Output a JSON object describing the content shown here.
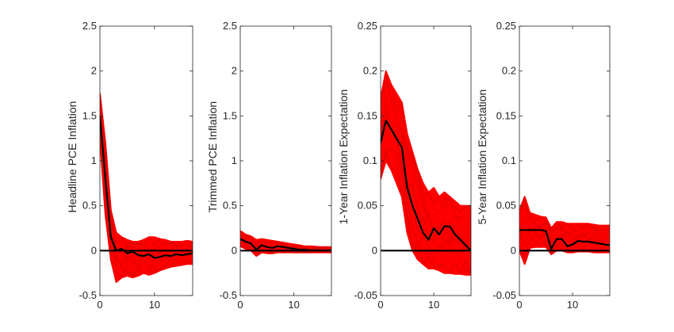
{
  "figure": {
    "colors": {
      "band": "#ff0000",
      "median": "#000000",
      "zero_line": "#000000",
      "axes": "#262626"
    }
  },
  "chart_data": [
    {
      "type": "line",
      "id": "headline",
      "ylabel": "Headline PCE Inflation",
      "xlim": [
        0,
        17
      ],
      "ylim": [
        -0.5,
        2.5
      ],
      "xticks": [
        0,
        10
      ],
      "xtick_labels": [
        "0",
        "10"
      ],
      "yticks": [
        -0.5,
        0,
        0.5,
        1,
        1.5,
        2,
        2.5
      ],
      "ytick_labels": [
        "-0.5",
        "0",
        "0.5",
        "1",
        "1.5",
        "2",
        "2.5"
      ],
      "zero_line": 0,
      "x": [
        0,
        1,
        2,
        3,
        4,
        5,
        6,
        7,
        8,
        9,
        10,
        11,
        12,
        13,
        14,
        15,
        16,
        17
      ],
      "median": [
        1.5,
        0.8,
        0.15,
        0.0,
        0.02,
        -0.03,
        -0.01,
        -0.05,
        -0.06,
        -0.04,
        -0.08,
        -0.07,
        -0.05,
        -0.06,
        -0.04,
        -0.05,
        -0.04,
        -0.03
      ],
      "band_upper": [
        1.75,
        1.2,
        0.45,
        0.2,
        0.15,
        0.12,
        0.1,
        0.1,
        0.12,
        0.15,
        0.15,
        0.13,
        0.12,
        0.1,
        0.1,
        0.1,
        0.11,
        0.1
      ],
      "band_lower": [
        1.25,
        0.4,
        -0.1,
        -0.35,
        -0.3,
        -0.28,
        -0.3,
        -0.28,
        -0.25,
        -0.27,
        -0.25,
        -0.22,
        -0.2,
        -0.18,
        -0.17,
        -0.16,
        -0.15,
        -0.15
      ]
    },
    {
      "type": "line",
      "id": "trimmed",
      "ylabel": "Trimmed PCE Inflation",
      "xlim": [
        0,
        17
      ],
      "ylim": [
        -0.5,
        2.5
      ],
      "xticks": [
        0,
        10
      ],
      "xtick_labels": [
        "0",
        "10"
      ],
      "yticks": [
        -0.5,
        0,
        0.5,
        1,
        1.5,
        2,
        2.5
      ],
      "ytick_labels": [
        "-0.5",
        "0",
        "0.5",
        "1",
        "1.5",
        "2",
        "2.5"
      ],
      "zero_line": 0,
      "x": [
        0,
        1,
        2,
        3,
        4,
        5,
        6,
        7,
        8,
        9,
        10,
        11,
        12,
        13,
        14,
        15,
        16,
        17
      ],
      "median": [
        0.13,
        0.1,
        0.08,
        0.01,
        0.06,
        0.04,
        0.03,
        0.05,
        0.04,
        0.03,
        0.02,
        0.01,
        0.01,
        0.005,
        0.005,
        0.003,
        0.002,
        0.0
      ],
      "band_upper": [
        0.22,
        0.18,
        0.16,
        0.12,
        0.13,
        0.12,
        0.11,
        0.1,
        0.09,
        0.08,
        0.07,
        0.06,
        0.05,
        0.05,
        0.045,
        0.04,
        0.04,
        0.04
      ],
      "band_lower": [
        0.05,
        0.02,
        0.0,
        -0.06,
        -0.02,
        -0.03,
        -0.03,
        -0.02,
        -0.02,
        -0.02,
        -0.02,
        -0.02,
        -0.02,
        -0.02,
        -0.02,
        -0.02,
        -0.02,
        -0.02
      ]
    },
    {
      "type": "line",
      "id": "expect1y",
      "ylabel": "1-Year Inflation Expectation",
      "xlim": [
        0,
        17
      ],
      "ylim": [
        -0.05,
        0.25
      ],
      "xticks": [
        0,
        10
      ],
      "xtick_labels": [
        "0",
        "10"
      ],
      "yticks": [
        -0.05,
        0,
        0.05,
        0.1,
        0.15,
        0.2,
        0.25
      ],
      "ytick_labels": [
        "-0.05",
        "0",
        "0.05",
        "0.1",
        "0.15",
        "0.2",
        "0.25"
      ],
      "zero_line": 0,
      "x": [
        0,
        1,
        2,
        3,
        4,
        5,
        6,
        7,
        8,
        9,
        10,
        11,
        12,
        13,
        14,
        15,
        16,
        17
      ],
      "median": [
        0.12,
        0.145,
        0.135,
        0.125,
        0.115,
        0.07,
        0.05,
        0.035,
        0.02,
        0.012,
        0.025,
        0.018,
        0.027,
        0.027,
        0.018,
        0.012,
        0.006,
        0.0
      ],
      "band_upper": [
        0.17,
        0.2,
        0.185,
        0.175,
        0.165,
        0.13,
        0.11,
        0.09,
        0.075,
        0.065,
        0.07,
        0.06,
        0.065,
        0.06,
        0.055,
        0.05,
        0.05,
        0.05
      ],
      "band_lower": [
        0.08,
        0.1,
        0.09,
        0.075,
        0.06,
        0.02,
        0.0,
        -0.01,
        -0.015,
        -0.02,
        -0.02,
        -0.022,
        -0.025,
        -0.025,
        -0.026,
        -0.026,
        -0.027,
        -0.027
      ]
    },
    {
      "type": "line",
      "id": "expect5y",
      "ylabel": "5-Year Inflation Expectation",
      "xlim": [
        0,
        17
      ],
      "ylim": [
        -0.05,
        0.25
      ],
      "xticks": [
        0,
        10
      ],
      "xtick_labels": [
        "0",
        "10"
      ],
      "yticks": [
        -0.05,
        0,
        0.05,
        0.1,
        0.15,
        0.2,
        0.25
      ],
      "ytick_labels": [
        "-0.05",
        "0",
        "0.05",
        "0.1",
        "0.15",
        "0.2",
        "0.25"
      ],
      "zero_line": 0,
      "x": [
        0,
        1,
        2,
        3,
        4,
        5,
        6,
        7,
        8,
        9,
        10,
        11,
        12,
        13,
        14,
        15,
        16,
        17
      ],
      "median": [
        0.023,
        0.023,
        0.023,
        0.023,
        0.023,
        0.022,
        0.002,
        0.013,
        0.013,
        0.005,
        0.007,
        0.011,
        0.01,
        0.01,
        0.009,
        0.008,
        0.007,
        0.006
      ],
      "band_upper": [
        0.045,
        0.06,
        0.042,
        0.04,
        0.038,
        0.037,
        0.025,
        0.032,
        0.032,
        0.03,
        0.03,
        0.03,
        0.03,
        0.03,
        0.029,
        0.028,
        0.028,
        0.028
      ],
      "band_lower": [
        0.0,
        -0.015,
        0.003,
        0.004,
        0.004,
        0.004,
        -0.004,
        0.0,
        0.0,
        -0.002,
        -0.002,
        -0.001,
        -0.001,
        -0.001,
        -0.002,
        -0.002,
        -0.002,
        -0.002
      ]
    }
  ]
}
